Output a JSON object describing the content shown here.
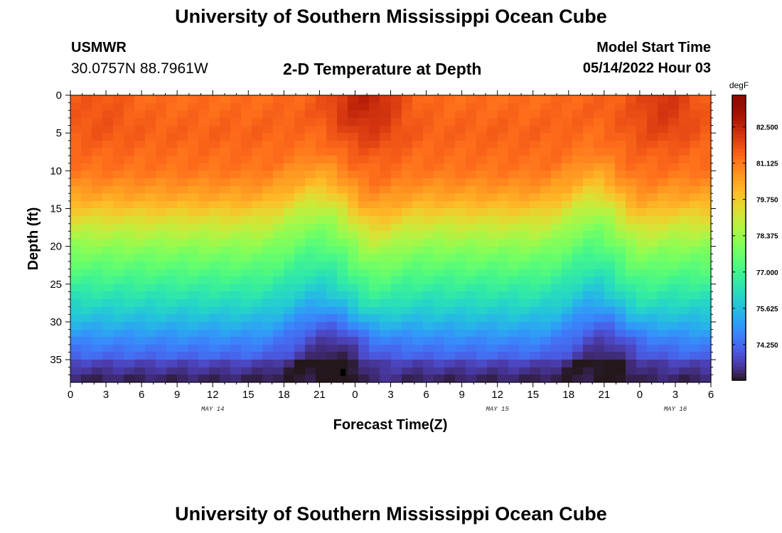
{
  "header": {
    "title": "University of Southern Mississippi Ocean Cube",
    "station": "USMWR",
    "coords": "30.0757N  88.7961W",
    "subtitle": "2-D Temperature at Depth",
    "model_start_label": "Model Start Time",
    "model_start_value": "05/14/2022 Hour 03"
  },
  "footer": {
    "title": "University of Southern Mississippi Ocean Cube"
  },
  "chart_data": {
    "type": "heatmap",
    "title": "2-D Temperature at Depth",
    "xlabel": "Forecast Time(Z)",
    "ylabel": "Depth (ft)",
    "x_range_hours": [
      0,
      54
    ],
    "y_range_ft": [
      0,
      38
    ],
    "y_inverted": true,
    "x_tick_values": [
      0,
      3,
      6,
      9,
      12,
      15,
      18,
      21,
      24,
      27,
      30,
      33,
      36,
      39,
      42,
      45,
      48,
      51,
      54
    ],
    "x_tick_labels": [
      "0",
      "3",
      "6",
      "9",
      "12",
      "15",
      "18",
      "21",
      "0",
      "3",
      "6",
      "9",
      "12",
      "15",
      "18",
      "21",
      "0",
      "3",
      "6"
    ],
    "date_labels": [
      {
        "text": "MAY 14",
        "x": 12
      },
      {
        "text": "MAY 15",
        "x": 36
      },
      {
        "text": "MAY 16",
        "x": 51
      }
    ],
    "y_ticks": [
      0,
      5,
      10,
      15,
      20,
      25,
      30,
      35
    ],
    "colorbar": {
      "unit": "degF",
      "min": 72.9,
      "max": 83.7,
      "labels": [
        82.5,
        81.125,
        79.75,
        78.375,
        77.0,
        75.625,
        74.25
      ],
      "label_text": [
        "82.500",
        "81.125",
        "79.750",
        "78.375",
        "77.000",
        "75.625",
        "74.250"
      ],
      "colormap": "turbo"
    },
    "approx_temperature_profile": {
      "depth_ft": [
        0,
        5,
        10,
        14,
        17,
        20,
        23,
        26,
        29,
        33,
        38
      ],
      "tempF_typical": [
        81.3,
        81.5,
        81.2,
        80.3,
        79.2,
        78.2,
        77.4,
        76.6,
        75.8,
        74.6,
        73.4
      ]
    }
  }
}
